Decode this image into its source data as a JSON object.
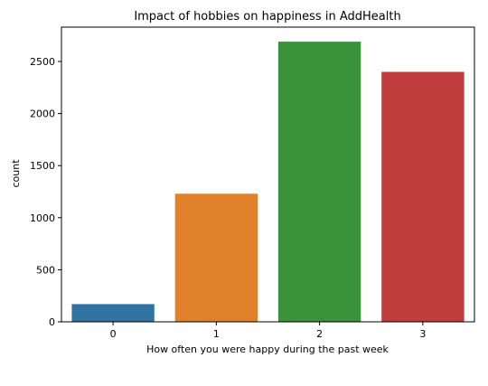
{
  "chart_data": {
    "type": "bar",
    "title": "Impact of hobbies on happiness in AddHealth",
    "xlabel": "How often you were happy during the past week",
    "ylabel": "count",
    "categories": [
      "0",
      "1",
      "2",
      "3"
    ],
    "values": [
      170,
      1230,
      2690,
      2400
    ],
    "ylim": [
      0,
      2830
    ],
    "yticks": [
      0,
      500,
      1000,
      1500,
      2000,
      2500
    ],
    "ytick_labels": [
      "0",
      "500",
      "1000",
      "1500",
      "2000",
      "2500"
    ],
    "colors": [
      "#3274a1",
      "#e1812c",
      "#3a923a",
      "#c03d3e"
    ],
    "grid": false,
    "legend": "none"
  }
}
